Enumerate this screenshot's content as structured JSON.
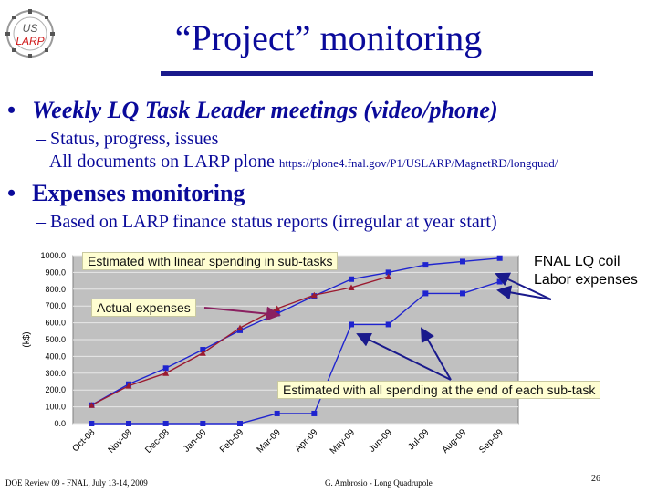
{
  "logo": {
    "line1": "US",
    "line2": "LARP"
  },
  "title": "“Project” monitoring",
  "bullets": {
    "b1": "Weekly LQ Task Leader meetings (video/phone)",
    "b1_sub1": "– Status, progress, issues",
    "b1_sub2": "– All documents on LARP plone",
    "b1_sub2_url": "https://plone4.fnal.gov/P1/USLARP/MagnetRD/longquad/",
    "b2": "Expenses monitoring",
    "b2_sub1": "– Based on LARP finance status reports (irregular at year start)"
  },
  "annotations": {
    "linear": "Estimated with linear spending in sub-tasks",
    "actual": "Actual expenses",
    "end": "Estimated with all spending at the end of each sub-task",
    "fnal_line1": "FNAL LQ coil",
    "fnal_line2": "Labor expenses"
  },
  "footer": {
    "left": "DOE Review 09 - FNAL, July 13-14, 2009",
    "center": "G. Ambrosio - Long Quadrupole",
    "page": "26"
  },
  "colors": {
    "title": "#0a0a9a",
    "plot_bg": "#c0c0c0",
    "blue": "#1f24cf",
    "red": "#9b1b30",
    "callout_bg": "#fffed2"
  },
  "chart_data": {
    "type": "line",
    "categories": [
      "Oct-08",
      "Nov-08",
      "Dec-08",
      "Jan-09",
      "Feb-09",
      "Mar-09",
      "Apr-09",
      "May-09",
      "Jun-09",
      "Jul-09",
      "Aug-09",
      "Sep-09"
    ],
    "ylabel": "(k$)",
    "ylim": [
      0,
      1000
    ],
    "yticks": [
      "0.0",
      "100.0",
      "200.0",
      "300.0",
      "400.0",
      "500.0",
      "600.0",
      "700.0",
      "800.0",
      "900.0",
      "1000.0"
    ],
    "grid": true,
    "series": [
      {
        "values": [
          110,
          235,
          330,
          440,
          555,
          655,
          760,
          860,
          900,
          945,
          965,
          985
        ],
        "color": "#1f24cf",
        "marker": "square"
      },
      {
        "values": [
          110,
          225,
          300,
          420,
          570,
          685,
          765,
          810,
          875,
          null,
          null,
          null
        ],
        "color": "#9b1b30",
        "marker": "triangle"
      },
      {
        "values": [
          0,
          0,
          0,
          0,
          0,
          60,
          60,
          590,
          590,
          775,
          775,
          845
        ],
        "color": "#1f24cf",
        "marker": "square"
      }
    ]
  }
}
